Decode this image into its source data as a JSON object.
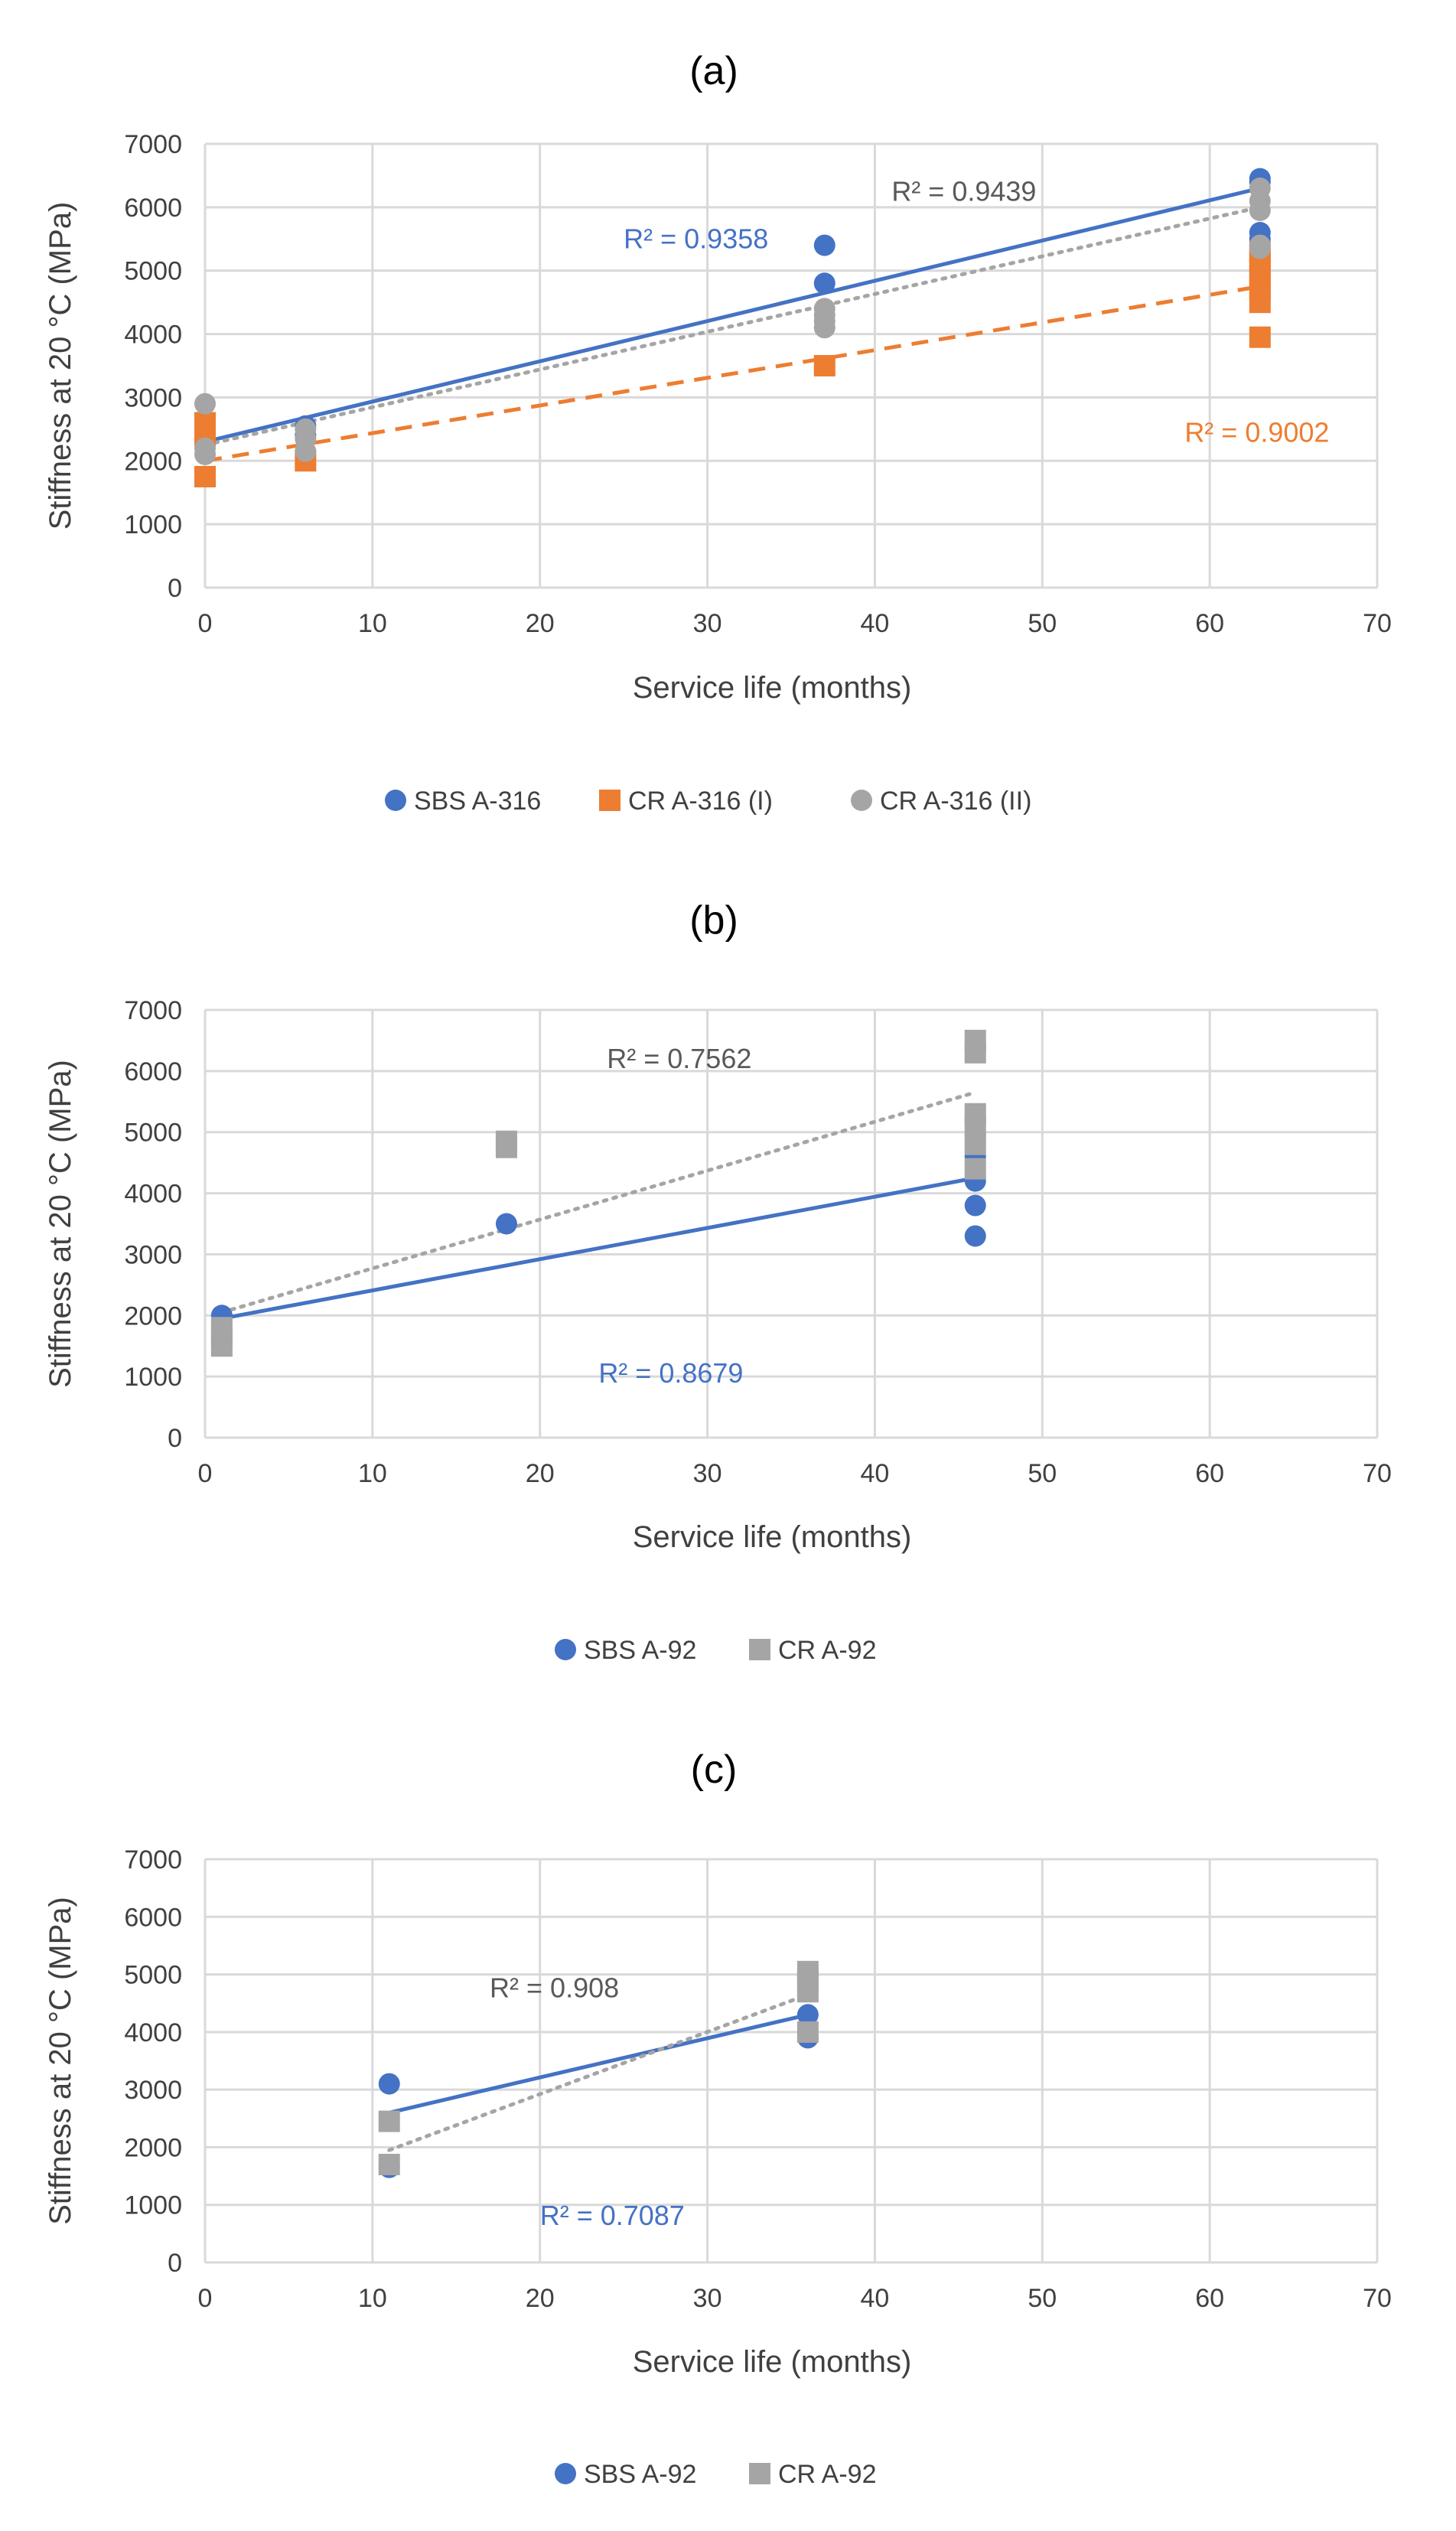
{
  "figure": {
    "colors": {
      "blue": "#4472c4",
      "orange": "#ed7d31",
      "gray": "#a5a5a5",
      "gray_text": "#595959"
    }
  },
  "chart_data": [
    {
      "type": "scatter",
      "title": "(a)",
      "xlabel": "Service life (months)",
      "ylabel": "Stiffness at 20 °C (MPa)",
      "xlim": [
        0,
        70
      ],
      "ylim": [
        0,
        7000
      ],
      "xticks": [
        0,
        10,
        20,
        30,
        40,
        50,
        60,
        70
      ],
      "yticks": [
        0,
        1000,
        2000,
        3000,
        4000,
        5000,
        6000,
        7000
      ],
      "grid": true,
      "legend_position": "bottom",
      "series": [
        {
          "name": "SBS A-316",
          "marker": "circle",
          "color": "#4472c4",
          "points": [
            [
              0,
              2300
            ],
            [
              0,
              2350
            ],
            [
              6,
              2400
            ],
            [
              6,
              2550
            ],
            [
              37,
              4800
            ],
            [
              37,
              5400
            ],
            [
              63,
              6450
            ],
            [
              63,
              6400
            ],
            [
              63,
              5600
            ],
            [
              63,
              5500
            ]
          ],
          "trend": {
            "style": "solid",
            "x": [
              0,
              63
            ],
            "y": [
              2300,
              6300
            ]
          },
          "r2": {
            "label": "R² = 0.9358",
            "x": 25,
            "y": 5350
          }
        },
        {
          "name": "CR A-316 (I)",
          "marker": "square",
          "color": "#ed7d31",
          "points": [
            [
              0,
              1750
            ],
            [
              0,
              2400
            ],
            [
              0,
              2500
            ],
            [
              0,
              2600
            ],
            [
              6,
              2000
            ],
            [
              37,
              3500
            ],
            [
              63,
              3950
            ],
            [
              63,
              4500
            ],
            [
              63,
              4700
            ],
            [
              63,
              4850
            ],
            [
              63,
              5000
            ],
            [
              63,
              5150
            ],
            [
              63,
              5300
            ]
          ],
          "trend": {
            "style": "dashed",
            "x": [
              0,
              63
            ],
            "y": [
              2000,
              4750
            ]
          },
          "r2": {
            "label": "R² = 0.9002",
            "x": 58.5,
            "y": 2300
          }
        },
        {
          "name": "CR A-316 (II)",
          "marker": "circle",
          "color": "#a5a5a5",
          "points": [
            [
              0,
              2900
            ],
            [
              0,
              2200
            ],
            [
              0,
              2100
            ],
            [
              6,
              2350
            ],
            [
              6,
              2150
            ],
            [
              6,
              2500
            ],
            [
              37,
              4400
            ],
            [
              37,
              4200
            ],
            [
              37,
              4100
            ],
            [
              37,
              4300
            ],
            [
              63,
              6300
            ],
            [
              63,
              6100
            ],
            [
              63,
              5950
            ],
            [
              63,
              5400
            ],
            [
              63,
              5350
            ]
          ],
          "trend": {
            "style": "dotted",
            "x": [
              0,
              63
            ],
            "y": [
              2250,
              6000
            ]
          },
          "r2": {
            "label": "R² = 0.9439",
            "x": 41,
            "y": 6100
          }
        }
      ]
    },
    {
      "type": "scatter",
      "title": "(b)",
      "xlabel": "Service life (months)",
      "ylabel": "Stiffness at 20 °C (MPa)",
      "xlim": [
        0,
        70
      ],
      "ylim": [
        0,
        7000
      ],
      "xticks": [
        0,
        10,
        20,
        30,
        40,
        50,
        60,
        70
      ],
      "yticks": [
        0,
        1000,
        2000,
        3000,
        4000,
        5000,
        6000,
        7000
      ],
      "grid": true,
      "legend_position": "bottom",
      "series": [
        {
          "name": "SBS A-92",
          "marker": "circle",
          "color": "#4472c4",
          "points": [
            [
              1,
              2000
            ],
            [
              18,
              3500
            ],
            [
              46,
              4600
            ],
            [
              46,
              4200
            ],
            [
              46,
              3800
            ],
            [
              46,
              3300
            ]
          ],
          "trend": {
            "style": "solid",
            "x": [
              1,
              46
            ],
            "y": [
              1950,
              4250
            ]
          },
          "r2": {
            "label": "R² = 0.8679",
            "x": 23.5,
            "y": 900
          }
        },
        {
          "name": "CR A-92",
          "marker": "square",
          "color": "#a5a5a5",
          "points": [
            [
              1,
              1500
            ],
            [
              1,
              1650
            ],
            [
              1,
              1800
            ],
            [
              18,
              4750
            ],
            [
              18,
              4850
            ],
            [
              46,
              6500
            ],
            [
              46,
              6300
            ],
            [
              46,
              5300
            ],
            [
              46,
              5100
            ],
            [
              46,
              4800
            ],
            [
              46,
              4400
            ]
          ],
          "trend": {
            "style": "dotted",
            "x": [
              1,
              46
            ],
            "y": [
              2050,
              5650
            ]
          },
          "r2": {
            "label": "R² = 0.7562",
            "x": 24,
            "y": 6050
          }
        }
      ]
    },
    {
      "type": "scatter",
      "title": "(c)",
      "xlabel": "Service life (months)",
      "ylabel": "Stiffness at 20 °C (MPa)",
      "xlim": [
        0,
        70
      ],
      "ylim": [
        0,
        7000
      ],
      "xticks": [
        0,
        10,
        20,
        30,
        40,
        50,
        60,
        70
      ],
      "yticks": [
        0,
        1000,
        2000,
        3000,
        4000,
        5000,
        6000,
        7000
      ],
      "grid": true,
      "legend_position": "bottom",
      "series": [
        {
          "name": "SBS A-92",
          "marker": "circle",
          "color": "#4472c4",
          "points": [
            [
              11,
              3100
            ],
            [
              11,
              1650
            ],
            [
              36,
              4300
            ],
            [
              36,
              3900
            ]
          ],
          "trend": {
            "style": "solid",
            "x": [
              11,
              36
            ],
            "y": [
              2600,
              4300
            ]
          },
          "r2": {
            "label": "R² = 0.7087",
            "x": 20,
            "y": 650
          }
        },
        {
          "name": "CR A-92",
          "marker": "square",
          "color": "#a5a5a5",
          "points": [
            [
              11,
              2450
            ],
            [
              11,
              1700
            ],
            [
              36,
              5050
            ],
            [
              36,
              4900
            ],
            [
              36,
              4700
            ],
            [
              36,
              4000
            ]
          ],
          "trend": {
            "style": "dotted",
            "x": [
              11,
              36
            ],
            "y": [
              1950,
              4650
            ]
          },
          "r2": {
            "label": "R² = 0.908",
            "x": 17,
            "y": 4600
          }
        }
      ]
    }
  ]
}
